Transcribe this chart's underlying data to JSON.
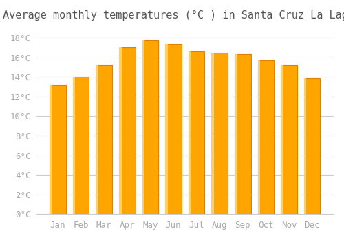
{
  "title": "Average monthly temperatures (°C ) in Santa Cruz La Laguna",
  "months": [
    "Jan",
    "Feb",
    "Mar",
    "Apr",
    "May",
    "Jun",
    "Jul",
    "Aug",
    "Sep",
    "Oct",
    "Nov",
    "Dec"
  ],
  "values": [
    13.2,
    14.0,
    15.2,
    17.0,
    17.7,
    17.4,
    16.6,
    16.5,
    16.3,
    15.7,
    15.2,
    13.9
  ],
  "bar_color": "#FFA500",
  "bar_edge_color": "#E08000",
  "background_color": "#FFFFFF",
  "grid_color": "#CCCCCC",
  "tick_label_color": "#AAAAAA",
  "title_color": "#555555",
  "ylim": [
    0,
    19
  ],
  "yticks": [
    0,
    2,
    4,
    6,
    8,
    10,
    12,
    14,
    16,
    18
  ],
  "title_fontsize": 11,
  "tick_fontsize": 9
}
